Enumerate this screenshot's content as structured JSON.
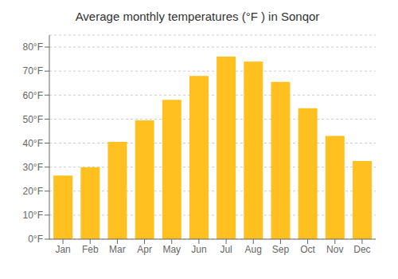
{
  "chart_data": {
    "type": "bar",
    "title": "Average monthly temperatures (°F ) in Sonqor",
    "categories": [
      "Jan",
      "Feb",
      "Mar",
      "Apr",
      "May",
      "Jun",
      "Jul",
      "Aug",
      "Sep",
      "Oct",
      "Nov",
      "Dec"
    ],
    "values": [
      26.5,
      30.0,
      40.5,
      49.5,
      58.0,
      68.0,
      76.0,
      74.0,
      65.5,
      54.5,
      43.0,
      32.5
    ],
    "color": "#FFC020",
    "ylim": [
      0,
      85
    ],
    "yticks": [
      {
        "value": 0,
        "label": "0°F"
      },
      {
        "value": 10,
        "label": "10°F"
      },
      {
        "value": 20,
        "label": "20°F"
      },
      {
        "value": 30,
        "label": "30°F"
      },
      {
        "value": 40,
        "label": "40°F"
      },
      {
        "value": 50,
        "label": "50°F"
      },
      {
        "value": 60,
        "label": "60°F"
      },
      {
        "value": 70,
        "label": "70°F"
      },
      {
        "value": 80,
        "label": "80°F"
      }
    ],
    "grid": true
  }
}
